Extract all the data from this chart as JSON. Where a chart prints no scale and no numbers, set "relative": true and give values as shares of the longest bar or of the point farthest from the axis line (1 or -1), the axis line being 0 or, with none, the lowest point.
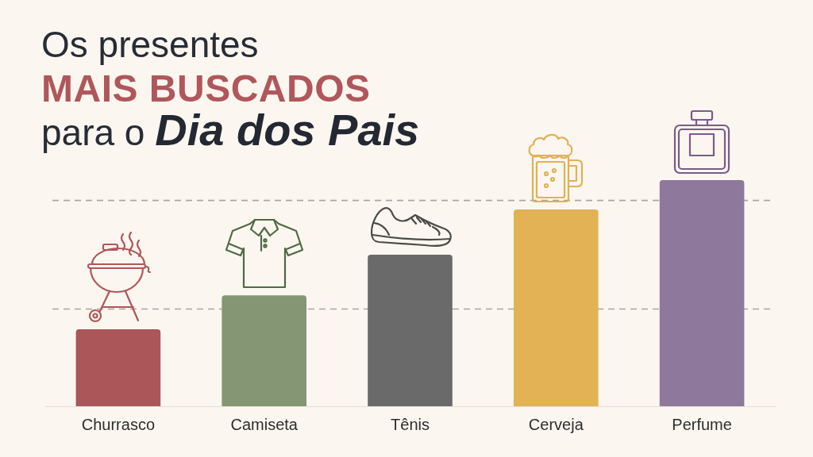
{
  "chart_data": {
    "type": "bar",
    "title": "Os presentes MAIS BUSCADOS para o Dia dos Pais",
    "categories": [
      "Churrasco",
      "Camiseta",
      "Tênis",
      "Cerveja",
      "Perfume"
    ],
    "values": [
      0.34,
      0.49,
      0.67,
      0.87,
      1
    ],
    "colors": [
      "#ab5659",
      "#849673",
      "#6a6a6a",
      "#e2b255",
      "#8e789b"
    ],
    "relative": true,
    "ref_lines": [
      {
        "axis": "y",
        "value": 0.91,
        "color": "#a9a59f",
        "line_style": "dashed"
      },
      {
        "axis": "y",
        "value": 0.43,
        "color": "#a9a59f",
        "line_style": "dashed"
      }
    ]
  }
}
